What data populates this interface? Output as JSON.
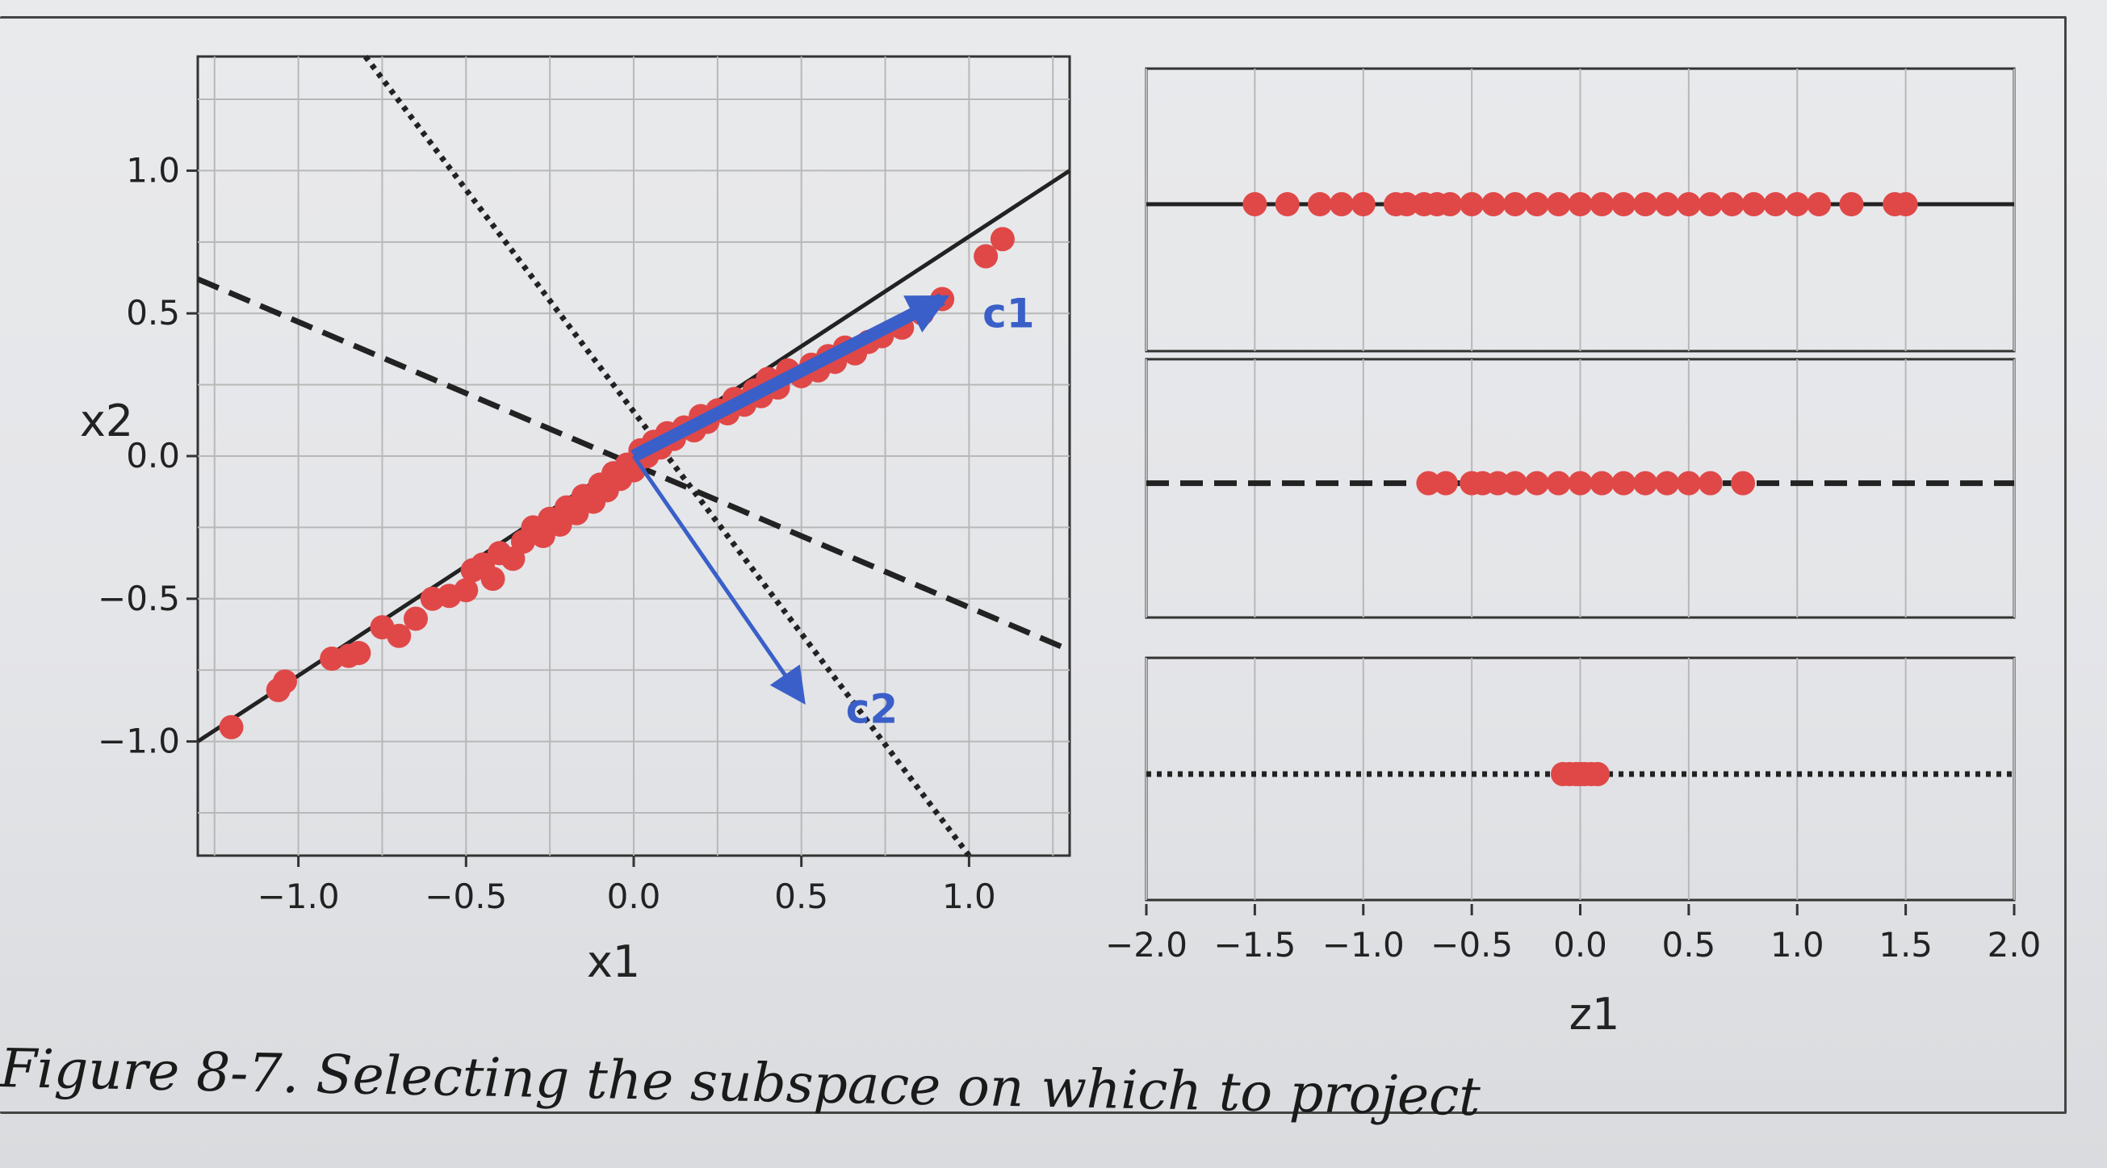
{
  "caption": "Figure 8-7. Selecting the subspace on which to project",
  "colors": {
    "points": "#e04848",
    "vectors": "#3a5fc8",
    "lines": "#222222",
    "grid": "#b8b8b8"
  },
  "chart_data": [
    {
      "type": "scatter",
      "xlabel": "x1",
      "ylabel": "x2",
      "xlim": [
        -1.3,
        1.3
      ],
      "ylim": [
        -1.4,
        1.4
      ],
      "xticks": [
        -1.0,
        -0.5,
        0.0,
        0.5,
        1.0
      ],
      "yticks": [
        -1.0,
        -0.5,
        0.0,
        0.5,
        1.0
      ],
      "xtick_labels": [
        "−1.0",
        "−0.5",
        "0.0",
        "0.5",
        "1.0"
      ],
      "ytick_labels": [
        "−1.0",
        "−0.5",
        "0.0",
        "0.5",
        "1.0"
      ],
      "grid": true,
      "lines": [
        {
          "style": "solid",
          "points": [
            [
              -1.3,
              -1.0
            ],
            [
              1.3,
              1.0
            ]
          ]
        },
        {
          "style": "dashed",
          "points": [
            [
              -1.3,
              0.62
            ],
            [
              1.3,
              -0.68
            ]
          ]
        },
        {
          "style": "dotted",
          "points": [
            [
              -0.8,
              1.4
            ],
            [
              1.0,
              -1.4
            ]
          ]
        }
      ],
      "vectors": [
        {
          "label": "c1",
          "start": [
            0.0,
            0.0
          ],
          "end": [
            0.92,
            0.55
          ]
        },
        {
          "label": "c2",
          "start": [
            0.0,
            0.0
          ],
          "end": [
            0.5,
            -0.85
          ]
        }
      ],
      "points": [
        [
          -1.2,
          -0.95
        ],
        [
          -1.06,
          -0.82
        ],
        [
          -1.04,
          -0.79
        ],
        [
          -0.9,
          -0.71
        ],
        [
          -0.85,
          -0.7
        ],
        [
          -0.82,
          -0.69
        ],
        [
          -0.75,
          -0.6
        ],
        [
          -0.7,
          -0.63
        ],
        [
          -0.65,
          -0.57
        ],
        [
          -0.6,
          -0.5
        ],
        [
          -0.55,
          -0.49
        ],
        [
          -0.5,
          -0.47
        ],
        [
          -0.48,
          -0.4
        ],
        [
          -0.45,
          -0.38
        ],
        [
          -0.42,
          -0.43
        ],
        [
          -0.4,
          -0.34
        ],
        [
          -0.36,
          -0.36
        ],
        [
          -0.33,
          -0.3
        ],
        [
          -0.3,
          -0.25
        ],
        [
          -0.27,
          -0.28
        ],
        [
          -0.25,
          -0.22
        ],
        [
          -0.22,
          -0.24
        ],
        [
          -0.2,
          -0.18
        ],
        [
          -0.17,
          -0.2
        ],
        [
          -0.15,
          -0.14
        ],
        [
          -0.12,
          -0.16
        ],
        [
          -0.1,
          -0.1
        ],
        [
          -0.08,
          -0.12
        ],
        [
          -0.06,
          -0.06
        ],
        [
          -0.04,
          -0.08
        ],
        [
          -0.02,
          -0.03
        ],
        [
          0.0,
          -0.05
        ],
        [
          0.02,
          0.02
        ],
        [
          0.04,
          0.0
        ],
        [
          0.06,
          0.05
        ],
        [
          0.08,
          0.03
        ],
        [
          0.1,
          0.08
        ],
        [
          0.12,
          0.06
        ],
        [
          0.15,
          0.1
        ],
        [
          0.18,
          0.09
        ],
        [
          0.2,
          0.14
        ],
        [
          0.22,
          0.12
        ],
        [
          0.25,
          0.16
        ],
        [
          0.28,
          0.15
        ],
        [
          0.3,
          0.2
        ],
        [
          0.33,
          0.18
        ],
        [
          0.36,
          0.23
        ],
        [
          0.38,
          0.21
        ],
        [
          0.4,
          0.27
        ],
        [
          0.43,
          0.24
        ],
        [
          0.46,
          0.3
        ],
        [
          0.5,
          0.28
        ],
        [
          0.53,
          0.32
        ],
        [
          0.55,
          0.3
        ],
        [
          0.58,
          0.35
        ],
        [
          0.6,
          0.33
        ],
        [
          0.63,
          0.38
        ],
        [
          0.66,
          0.36
        ],
        [
          0.7,
          0.4
        ],
        [
          0.74,
          0.42
        ],
        [
          0.8,
          0.45
        ],
        [
          0.86,
          0.5
        ],
        [
          0.92,
          0.55
        ],
        [
          1.05,
          0.7
        ],
        [
          1.1,
          0.76
        ]
      ]
    },
    {
      "type": "scatter",
      "xlabel": "z1",
      "xlim": [
        -2.0,
        2.0
      ],
      "xticks": [
        -2.0,
        -1.5,
        -1.0,
        -0.5,
        0.0,
        0.5,
        1.0,
        1.5,
        2.0
      ],
      "xtick_labels": [
        "−2.0",
        "−1.5",
        "−1.0",
        "−0.5",
        "0.0",
        "0.5",
        "1.0",
        "1.5",
        "2.0"
      ],
      "grid": true,
      "panels": [
        {
          "style": "solid",
          "points": [
            -1.5,
            -1.35,
            -1.2,
            -1.1,
            -1.0,
            -0.85,
            -0.8,
            -0.72,
            -0.66,
            -0.6,
            -0.5,
            -0.4,
            -0.3,
            -0.2,
            -0.1,
            0.0,
            0.1,
            0.2,
            0.3,
            0.4,
            0.5,
            0.6,
            0.7,
            0.8,
            0.9,
            1.0,
            1.1,
            1.25,
            1.45,
            1.5
          ]
        },
        {
          "style": "dashed",
          "points": [
            -0.7,
            -0.62,
            -0.5,
            -0.45,
            -0.38,
            -0.3,
            -0.2,
            -0.1,
            0.0,
            0.1,
            0.2,
            0.3,
            0.4,
            0.5,
            0.6,
            0.75
          ]
        },
        {
          "style": "dotted",
          "points": [
            -0.08,
            -0.05,
            -0.02,
            0.0,
            0.02,
            0.05,
            0.08
          ]
        }
      ]
    }
  ]
}
